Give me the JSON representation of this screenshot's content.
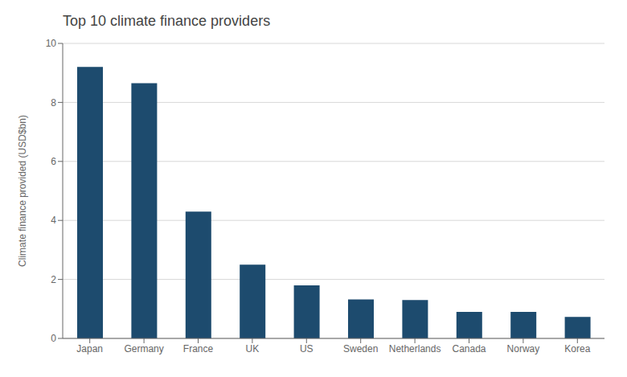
{
  "chart_data": {
    "type": "bar",
    "title": "Top 10 climate finance providers",
    "categories": [
      "Japan",
      "Germany",
      "France",
      "UK",
      "US",
      "Sweden",
      "Netherlands",
      "Canada",
      "Norway",
      "Korea"
    ],
    "values": [
      9.2,
      8.65,
      4.3,
      2.5,
      1.8,
      1.32,
      1.3,
      0.9,
      0.9,
      0.73
    ],
    "color": "#1d4b6e",
    "ylabel": "Climate finance provided (USD$bn)",
    "ylim": [
      0,
      10
    ],
    "yticks": [
      0,
      2,
      4,
      6,
      8,
      10
    ],
    "grid": true
  }
}
